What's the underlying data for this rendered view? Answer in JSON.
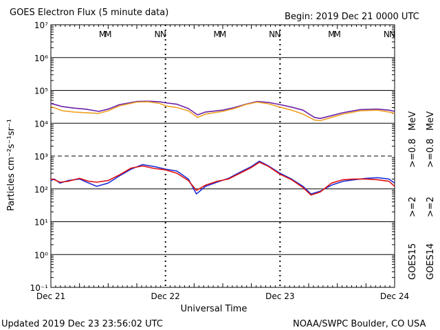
{
  "header": {
    "title": "GOES Electron Flux (5 minute data)",
    "begin": "Begin: 2019 Dec 21 0000 UTC"
  },
  "footer": {
    "updated": "Updated 2019 Dec 23 23:56:02 UTC",
    "credit": "NOAA/SWPC Boulder, CO USA"
  },
  "colors": {
    "goes15_2mev": "#1f2fd6",
    "goes14_2mev": "#e01010",
    "goes15_08mev": "#6a1fa8",
    "goes14_08mev": "#f0a020",
    "marker_m": "#e01010",
    "marker_n_red": "#e01010",
    "marker_blue": "#1f2fd6"
  },
  "legend": {
    "goes15_label": "GOES15",
    "goes14_label": "GOES14",
    "e2_label": ">=2",
    "e08_label": ">=0.8",
    "unit": "MeV"
  },
  "chart_data": {
    "type": "line",
    "title": "GOES Electron Flux (5 minute data)",
    "xlabel": "Universal Time",
    "ylabel": "Particles cm⁻²s⁻¹sr⁻¹",
    "yscale": "log",
    "ylim_exp": [
      -1,
      7
    ],
    "xlim_days": [
      0,
      3
    ],
    "x_ticks": [
      "Dec 21",
      "Dec 22",
      "Dec 23",
      "Dec 24"
    ],
    "y_ticks": [
      "10⁻¹",
      "10⁰",
      "10¹",
      "10²",
      "10³",
      "10⁴",
      "10⁵",
      "10⁶",
      "10⁷"
    ],
    "threshold_dashed_exp": 3,
    "markers": [
      {
        "label": "M",
        "day": 0.45,
        "color": "red"
      },
      {
        "label": "M",
        "day": 0.5,
        "color": "blue"
      },
      {
        "label": "N",
        "day": 0.93,
        "color": "red"
      },
      {
        "label": "N",
        "day": 0.98,
        "color": "blue"
      },
      {
        "label": "M",
        "day": 1.45,
        "color": "red"
      },
      {
        "label": "M",
        "day": 1.5,
        "color": "blue"
      },
      {
        "label": "N",
        "day": 1.93,
        "color": "red"
      },
      {
        "label": "N",
        "day": 1.98,
        "color": "blue"
      },
      {
        "label": "M",
        "day": 2.45,
        "color": "red"
      },
      {
        "label": "M",
        "day": 2.5,
        "color": "blue"
      },
      {
        "label": "N",
        "day": 2.93,
        "color": "red"
      },
      {
        "label": "N",
        "day": 2.98,
        "color": "blue"
      }
    ],
    "series": [
      {
        "name": "GOES15 >=0.8 MeV",
        "x": [
          0,
          0.05,
          0.1,
          0.2,
          0.3,
          0.42,
          0.5,
          0.6,
          0.75,
          0.85,
          0.95,
          1.0,
          1.1,
          1.2,
          1.28,
          1.35,
          1.5,
          1.6,
          1.7,
          1.8,
          1.9,
          2.0,
          2.1,
          2.2,
          2.3,
          2.35,
          2.45,
          2.55,
          2.7,
          2.85,
          2.95,
          3.0
        ],
        "y": [
          40000,
          36000,
          32000,
          29000,
          27000,
          23000,
          27000,
          37000,
          46000,
          47000,
          45000,
          42000,
          38000,
          28000,
          18000,
          22000,
          25000,
          30000,
          38000,
          46000,
          43000,
          37000,
          31000,
          25000,
          15000,
          14000,
          17000,
          21000,
          26000,
          27000,
          25000,
          23000
        ]
      },
      {
        "name": "GOES14 >=0.8 MeV",
        "x": [
          0,
          0.05,
          0.1,
          0.2,
          0.3,
          0.42,
          0.5,
          0.6,
          0.75,
          0.85,
          0.95,
          1.0,
          1.1,
          1.2,
          1.28,
          1.35,
          1.5,
          1.6,
          1.7,
          1.8,
          1.9,
          2.0,
          2.1,
          2.2,
          2.3,
          2.35,
          2.45,
          2.55,
          2.7,
          2.85,
          2.95,
          3.0
        ],
        "y": [
          32000,
          28000,
          24000,
          22000,
          21000,
          20000,
          24000,
          34000,
          44000,
          45000,
          40000,
          34000,
          30000,
          24000,
          15000,
          19000,
          23000,
          28000,
          37000,
          44000,
          39000,
          31000,
          25000,
          19000,
          12500,
          12000,
          15000,
          19000,
          24000,
          25000,
          22000,
          20000
        ]
      },
      {
        "name": "GOES15 >=2 MeV",
        "x": [
          0,
          0.03,
          0.08,
          0.15,
          0.25,
          0.33,
          0.4,
          0.5,
          0.6,
          0.7,
          0.8,
          0.9,
          1.0,
          1.1,
          1.2,
          1.27,
          1.35,
          1.45,
          1.55,
          1.65,
          1.75,
          1.82,
          1.9,
          2.0,
          2.1,
          2.2,
          2.27,
          2.35,
          2.45,
          2.55,
          2.65,
          2.75,
          2.85,
          2.95,
          3.0
        ],
        "y": [
          180,
          200,
          150,
          180,
          200,
          150,
          120,
          150,
          250,
          400,
          550,
          480,
          400,
          350,
          200,
          70,
          120,
          160,
          210,
          320,
          480,
          700,
          500,
          300,
          200,
          120,
          70,
          85,
          130,
          170,
          190,
          210,
          220,
          200,
          150
        ]
      },
      {
        "name": "GOES14 >=2 MeV",
        "x": [
          0,
          0.03,
          0.08,
          0.15,
          0.25,
          0.33,
          0.4,
          0.5,
          0.6,
          0.7,
          0.8,
          0.9,
          1.0,
          1.1,
          1.2,
          1.27,
          1.35,
          1.45,
          1.55,
          1.65,
          1.75,
          1.82,
          1.9,
          2.0,
          2.1,
          2.2,
          2.27,
          2.35,
          2.45,
          2.55,
          2.65,
          2.75,
          2.85,
          2.95,
          3.0
        ],
        "y": [
          200,
          190,
          160,
          170,
          210,
          170,
          160,
          180,
          270,
          430,
          500,
          420,
          380,
          300,
          180,
          90,
          130,
          170,
          200,
          300,
          450,
          650,
          480,
          280,
          190,
          110,
          65,
          80,
          150,
          190,
          200,
          200,
          190,
          170,
          120
        ]
      }
    ]
  }
}
